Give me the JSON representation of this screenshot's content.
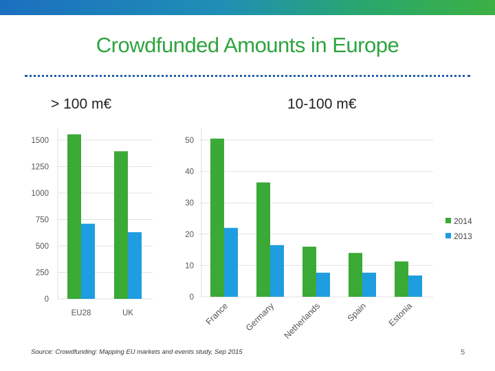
{
  "slide": {
    "title": "Crowdfunded Amounts in Europe",
    "source": "Source: Crowdfunding: Mapping EU markets and events study, Sep 2015",
    "page_number": "5"
  },
  "colors": {
    "series_2014": "#3aa935",
    "series_2013": "#1e9de0",
    "title": "#2ea43f"
  },
  "chart_data": [
    {
      "type": "bar",
      "title": "> 100 m€",
      "categories": [
        "EU28",
        "UK"
      ],
      "series": [
        {
          "name": "2014",
          "values": [
            1555,
            1395
          ]
        },
        {
          "name": "2013",
          "values": [
            710,
            630
          ]
        }
      ],
      "ylim": [
        0,
        1500
      ],
      "yticks": [
        0,
        250,
        500,
        750,
        1000,
        1250,
        1500
      ],
      "grid": true
    },
    {
      "type": "bar",
      "title": "10-100 m€",
      "categories": [
        "France",
        "Germany",
        "Netherlands",
        "Spain",
        "Estonia"
      ],
      "series": [
        {
          "name": "2014",
          "values": [
            50.5,
            36.5,
            16,
            14,
            11.3
          ]
        },
        {
          "name": "2013",
          "values": [
            22,
            16.5,
            7.7,
            7.7,
            6.8
          ]
        }
      ],
      "ylim": [
        0,
        50
      ],
      "yticks": [
        0,
        10,
        20,
        30,
        40,
        50
      ],
      "grid": true,
      "legend": "right"
    }
  ]
}
